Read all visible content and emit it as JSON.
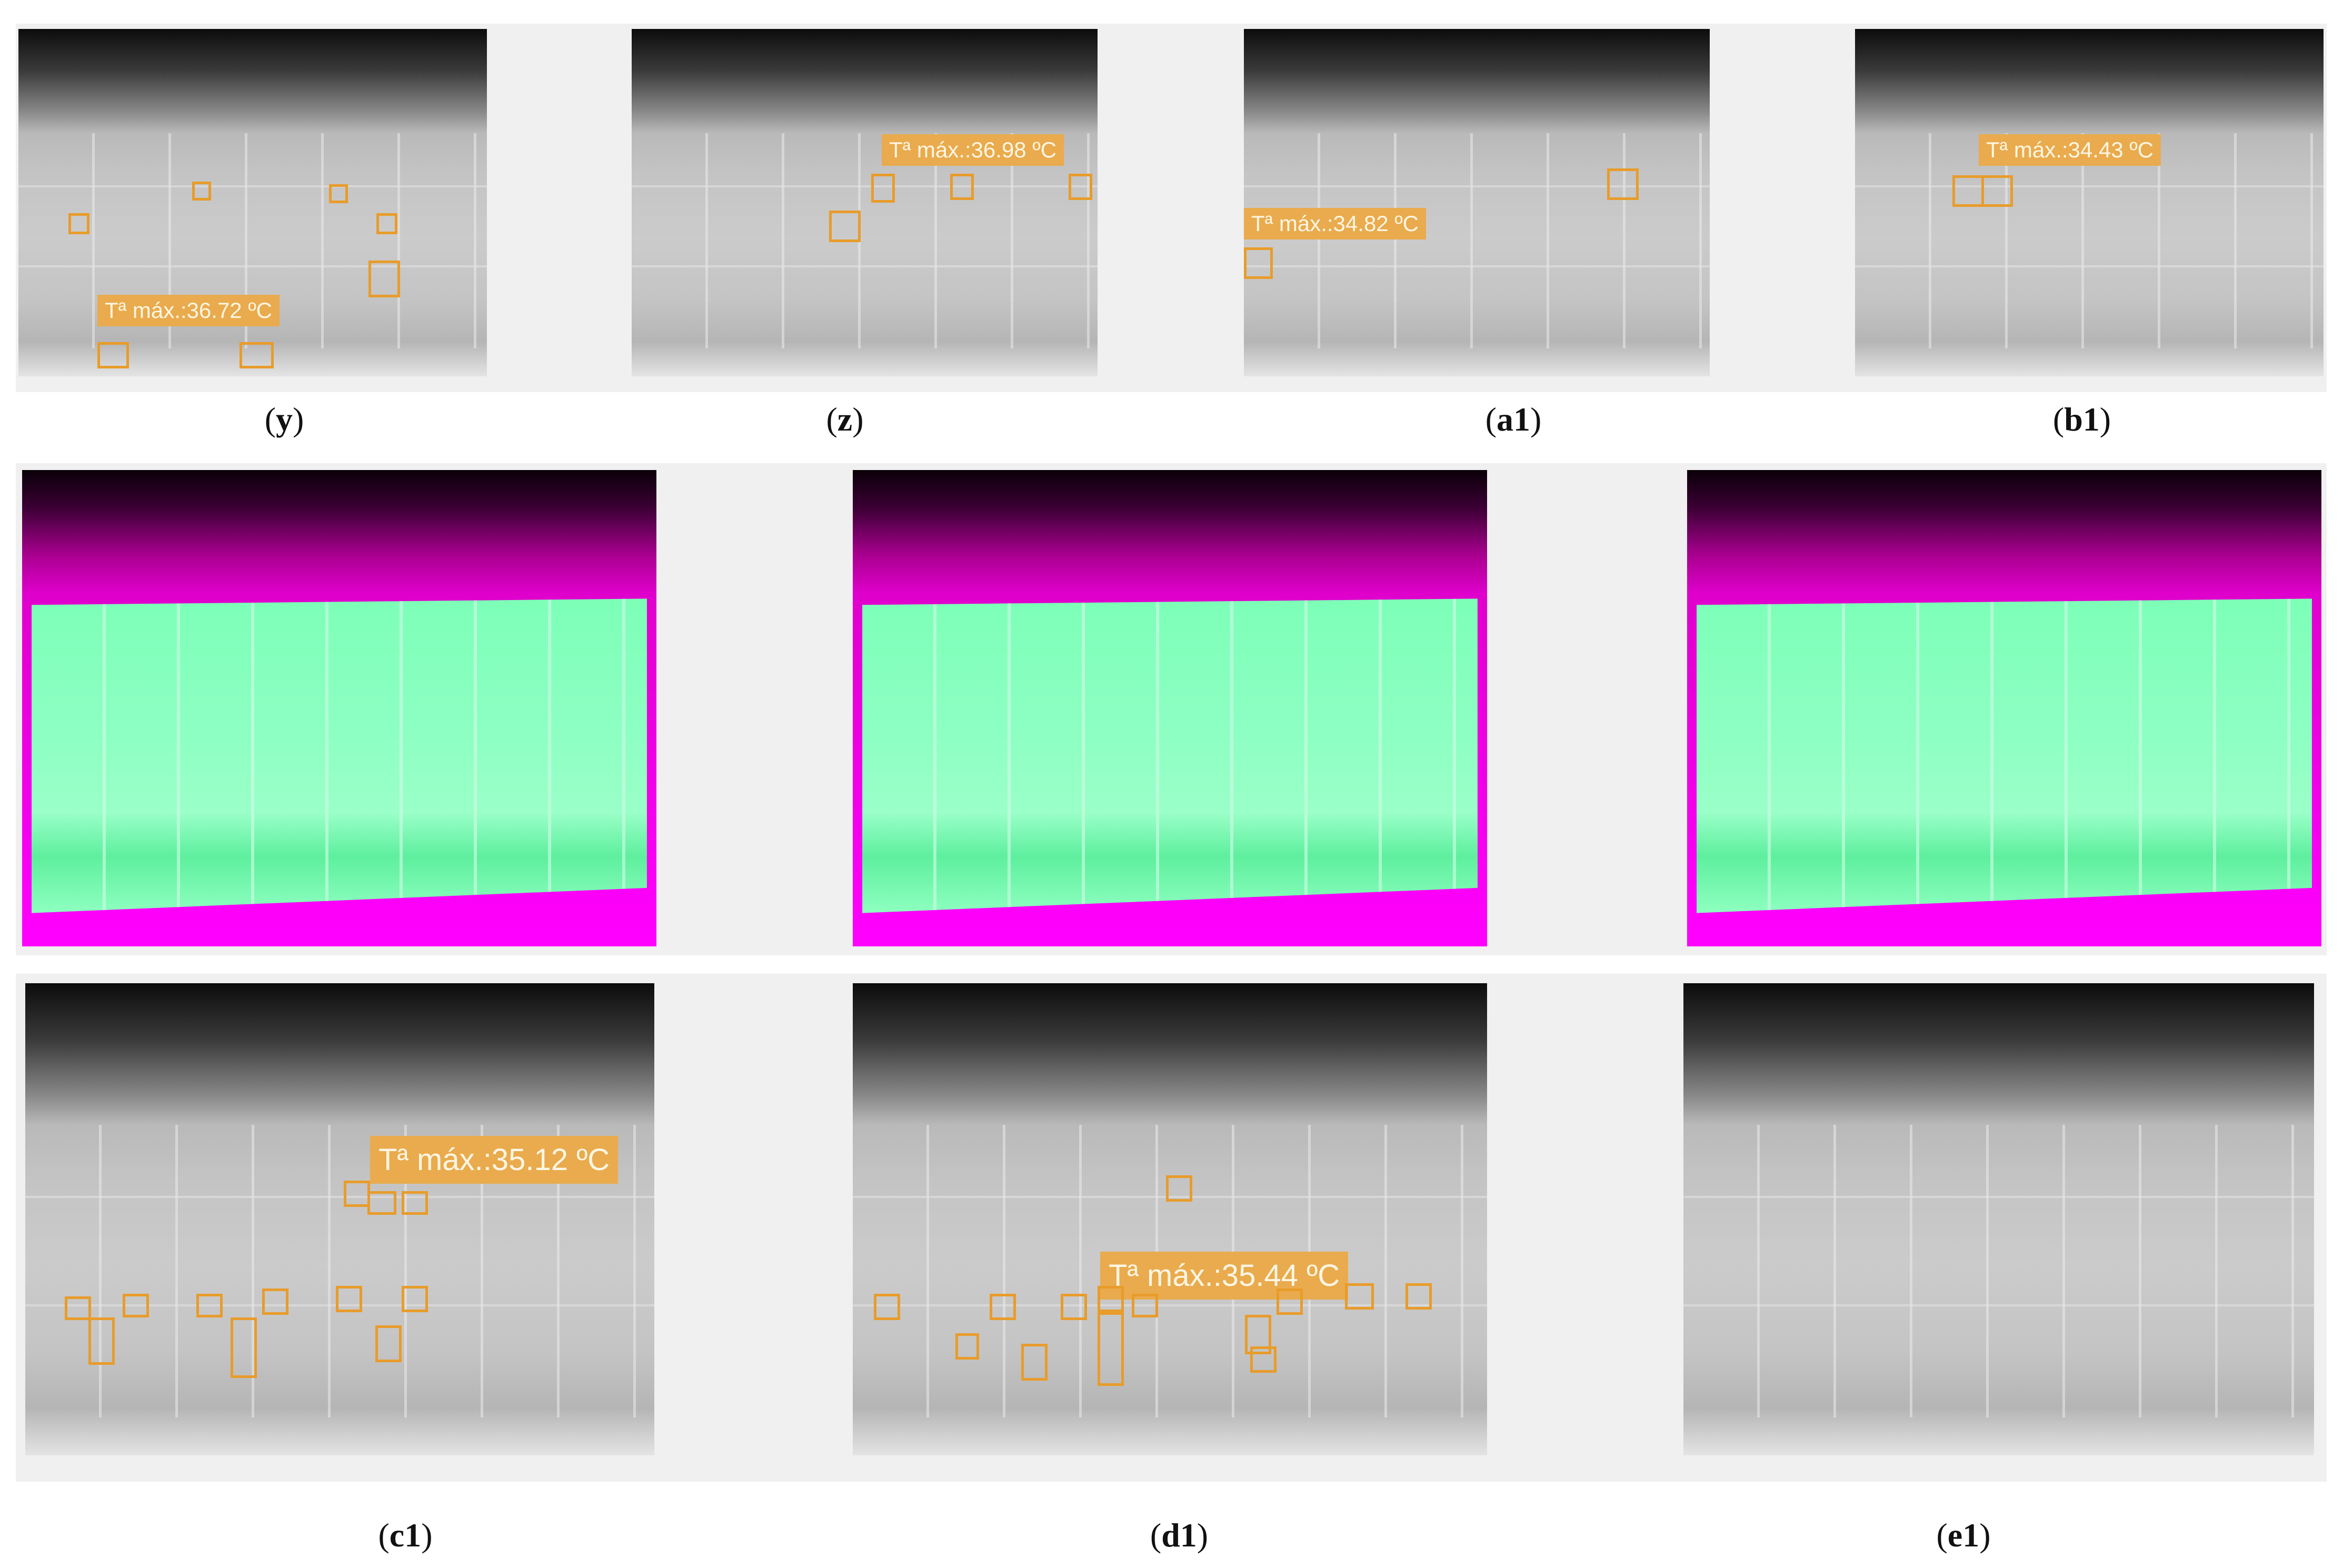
{
  "colors": {
    "annotation_orange": "#e89c2a",
    "label_fill": "#e9ab4d",
    "segmentation_panel": "#8cffc2",
    "segmentation_background": "#ff00ff"
  },
  "row1": {
    "panels": [
      {
        "caption": "y",
        "label": "Tª máx.:36.72 ºC"
      },
      {
        "caption": "z",
        "label": "Tª máx.:36.98 ºC"
      },
      {
        "caption": "a1",
        "label": "Tª máx.:34.82 ºC"
      },
      {
        "caption": "b1",
        "label": "Tª máx.:34.43 ºC"
      }
    ]
  },
  "row3": {
    "panels": [
      {
        "caption": "c1",
        "label": "Tª máx.:35.12 ºC"
      },
      {
        "caption": "d1",
        "label": "Tª máx.:35.44 ºC"
      },
      {
        "caption": "e1",
        "label": ""
      }
    ]
  }
}
